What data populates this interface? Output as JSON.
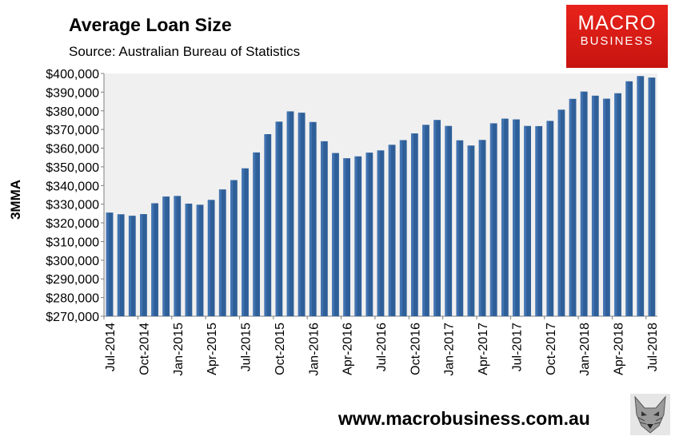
{
  "brand": {
    "logo_line1": "MACRO",
    "logo_line2": "BUSINESS",
    "logo_color": "#d81b16",
    "website": "www.macrobusiness.com.au"
  },
  "chart_data": {
    "type": "bar",
    "title": "Average Loan Size",
    "subtitle": "Source: Australian Bureau of Statistics",
    "ylabel": "3MMA",
    "xlabel": "",
    "ylim": [
      270000,
      400000
    ],
    "yticks": [
      "$270,000",
      "$280,000",
      "$290,000",
      "$300,000",
      "$310,000",
      "$320,000",
      "$330,000",
      "$340,000",
      "$350,000",
      "$360,000",
      "$370,000",
      "$380,000",
      "$390,000",
      "$400,000"
    ],
    "xtick_labels": [
      "Jul-2014",
      "Oct-2014",
      "Jan-2015",
      "Apr-2015",
      "Jul-2015",
      "Oct-2015",
      "Jan-2016",
      "Apr-2016",
      "Jul-2016",
      "Oct-2016",
      "Jan-2017",
      "Apr-2017",
      "Jul-2017",
      "Oct-2017",
      "Jan-2018",
      "Apr-2018",
      "Jul-2018"
    ],
    "bar_color": "#2f5f98",
    "background_color": "#f0f0f0",
    "grid": false,
    "categories": [
      "Jul-2014",
      "Aug-2014",
      "Sep-2014",
      "Oct-2014",
      "Nov-2014",
      "Dec-2014",
      "Jan-2015",
      "Feb-2015",
      "Mar-2015",
      "Apr-2015",
      "May-2015",
      "Jun-2015",
      "Jul-2015",
      "Aug-2015",
      "Sep-2015",
      "Oct-2015",
      "Nov-2015",
      "Dec-2015",
      "Jan-2016",
      "Feb-2016",
      "Mar-2016",
      "Apr-2016",
      "May-2016",
      "Jun-2016",
      "Jul-2016",
      "Aug-2016",
      "Sep-2016",
      "Oct-2016",
      "Nov-2016",
      "Dec-2016",
      "Jan-2017",
      "Feb-2017",
      "Mar-2017",
      "Apr-2017",
      "May-2017",
      "Jun-2017",
      "Jul-2017",
      "Aug-2017",
      "Sep-2017",
      "Oct-2017",
      "Nov-2017",
      "Dec-2017",
      "Jan-2018",
      "Feb-2018",
      "Mar-2018",
      "Apr-2018",
      "May-2018",
      "Jun-2018",
      "Jul-2018"
    ],
    "values": [
      325500,
      324600,
      323800,
      324700,
      330500,
      334100,
      334400,
      330300,
      329700,
      332300,
      337900,
      342900,
      349200,
      357700,
      367500,
      374200,
      379700,
      379000,
      374000,
      363700,
      357400,
      354600,
      355600,
      357600,
      358800,
      361800,
      364300,
      367900,
      372500,
      375100,
      371900,
      364200,
      361400,
      364400,
      373300,
      375800,
      375400,
      371900,
      371800,
      374600,
      380600,
      386400,
      390300,
      388100,
      386500,
      389400,
      395800,
      398600,
      397800
    ]
  }
}
